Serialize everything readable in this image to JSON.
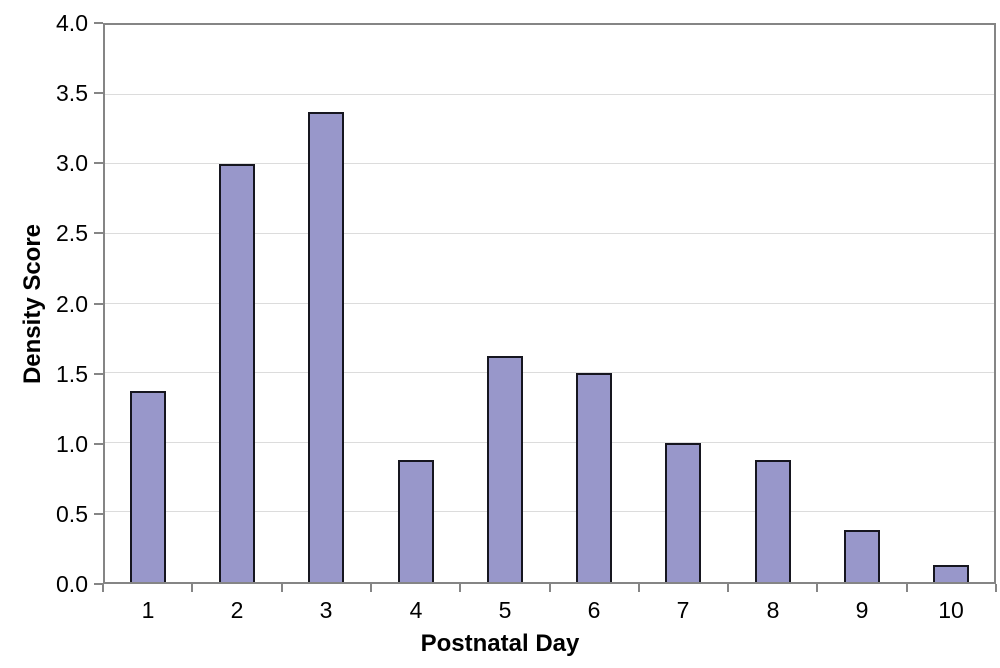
{
  "chart_data": {
    "type": "bar",
    "title": "",
    "xlabel": "Postnatal Day",
    "ylabel": "Density Score",
    "categories": [
      "1",
      "2",
      "3",
      "4",
      "5",
      "6",
      "7",
      "8",
      "9",
      "10"
    ],
    "values": [
      1.375,
      3.0,
      3.375,
      0.875,
      1.625,
      1.5,
      1.0,
      0.875,
      0.375,
      0.125
    ],
    "ylim": [
      0.0,
      4.0
    ],
    "ytick_step": 0.5,
    "ytick_labels": [
      "0.0",
      "0.5",
      "1.0",
      "1.5",
      "2.0",
      "2.5",
      "3.0",
      "3.5",
      "4.0"
    ],
    "grid": "horizontal gridlines at every 0.5, light gray",
    "legend_position": "none",
    "series_name": "Density Score",
    "colors": {
      "bar_fill": "#9897ca",
      "bar_border": "#16161f",
      "axis_frame": "#858585",
      "gridline": "#dcdcdc",
      "text": "#000000",
      "background": "#ffffff"
    }
  }
}
